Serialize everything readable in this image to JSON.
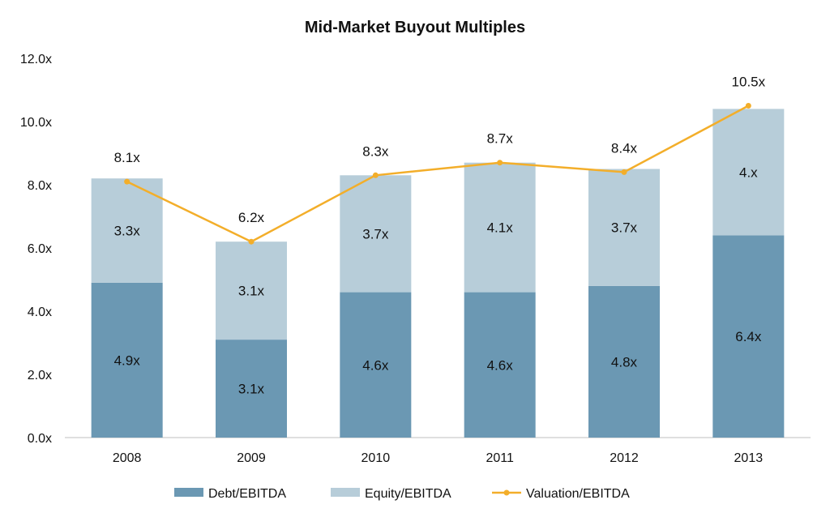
{
  "chart_data": {
    "type": "bar",
    "title": "Mid-Market Buyout Multiples",
    "categories": [
      "2008",
      "2009",
      "2010",
      "2011",
      "2012",
      "2013"
    ],
    "series": [
      {
        "name": "Debt/EBITDA",
        "kind": "stacked-bar",
        "color": "#6b98b3",
        "values": [
          4.9,
          3.1,
          4.6,
          4.6,
          4.8,
          6.4
        ],
        "labels": [
          "4.9x",
          "3.1x",
          "4.6x",
          "4.6x",
          "4.8x",
          "6.4x"
        ]
      },
      {
        "name": "Equity/EBITDA",
        "kind": "stacked-bar",
        "color": "#b7cdd9",
        "values": [
          3.3,
          3.1,
          3.7,
          4.1,
          3.7,
          4.0
        ],
        "labels": [
          "3.3x",
          "3.1x",
          "3.7x",
          "4.1x",
          "3.7x",
          "4.x"
        ]
      },
      {
        "name": "Valuation/EBITDA",
        "kind": "line",
        "color": "#f3ae2a",
        "values": [
          8.1,
          6.2,
          8.3,
          8.7,
          8.4,
          10.5
        ],
        "labels": [
          "8.1x",
          "6.2x",
          "8.3x",
          "8.7x",
          "8.4x",
          "10.5x"
        ]
      }
    ],
    "ylim": [
      0,
      12
    ],
    "yticks": [
      0,
      2,
      4,
      6,
      8,
      10,
      12
    ],
    "ytick_labels": [
      "0.0x",
      "2.0x",
      "4.0x",
      "6.0x",
      "8.0x",
      "10.0x",
      "12.0x"
    ],
    "grid": false,
    "legend_position": "bottom",
    "xlabel": "",
    "ylabel": ""
  }
}
